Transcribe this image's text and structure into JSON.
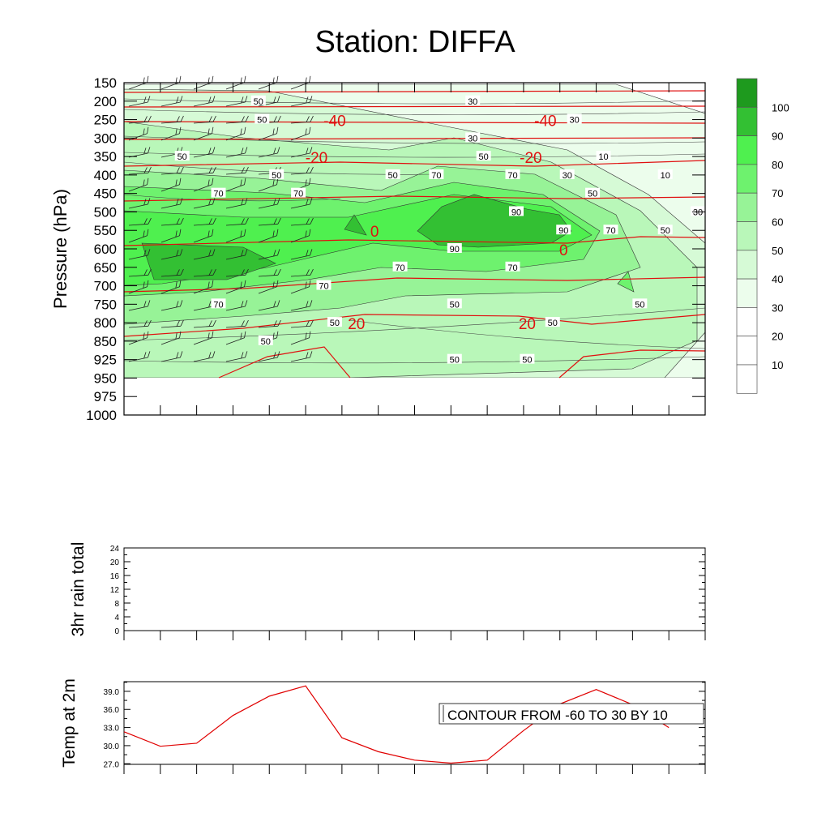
{
  "title": "Station: DIFFA",
  "colorbar": {
    "labels": [
      "100",
      "90",
      "80",
      "70",
      "60",
      "50",
      "40",
      "30",
      "20",
      "10"
    ],
    "colors": [
      "#1e9a1e",
      "#33c033",
      "#4ff04f",
      "#6ef26e",
      "#97f397",
      "#b9f7b9",
      "#d6fad6",
      "#ecfdec",
      "#ffffff",
      "#ffffff",
      "#ffffff"
    ]
  },
  "chart_data": [
    {
      "type": "heatmap",
      "name": "rh-wind-temperature-cross-section",
      "ylabel": "Pressure (hPa)",
      "y_ticks": [
        "150",
        "200",
        "250",
        "300",
        "350",
        "400",
        "450",
        "500",
        "550",
        "600",
        "650",
        "700",
        "750",
        "800",
        "850",
        "925",
        "950",
        "975",
        "1000"
      ],
      "x_ticks": 16,
      "shaded_field": "relative humidity (%)",
      "rh_levels": [
        10,
        20,
        30,
        40,
        50,
        60,
        70,
        80,
        90,
        100
      ],
      "rh_contour_labels": [
        {
          "text": "50",
          "x": 3.7,
          "p": "200"
        },
        {
          "text": "30",
          "x": 9.6,
          "p": "200"
        },
        {
          "text": "50",
          "x": 3.8,
          "p": "250"
        },
        {
          "text": "30",
          "x": 9.6,
          "p": "300"
        },
        {
          "text": "30",
          "x": 12.4,
          "p": "250"
        },
        {
          "text": "50",
          "x": 1.6,
          "p": "350"
        },
        {
          "text": "50",
          "x": 4.2,
          "p": "400"
        },
        {
          "text": "50",
          "x": 7.4,
          "p": "400"
        },
        {
          "text": "50",
          "x": 9.9,
          "p": "350"
        },
        {
          "text": "30",
          "x": 12.2,
          "p": "400"
        },
        {
          "text": "10",
          "x": 13.2,
          "p": "350"
        },
        {
          "text": "10",
          "x": 14.9,
          "p": "400"
        },
        {
          "text": "70",
          "x": 8.6,
          "p": "400"
        },
        {
          "text": "70",
          "x": 10.7,
          "p": "400"
        },
        {
          "text": "50",
          "x": 12.9,
          "p": "450"
        },
        {
          "text": "30",
          "x": 15.8,
          "p": "500"
        },
        {
          "text": "70",
          "x": 2.6,
          "p": "450"
        },
        {
          "text": "70",
          "x": 4.8,
          "p": "450"
        },
        {
          "text": "90",
          "x": 10.8,
          "p": "500"
        },
        {
          "text": "90",
          "x": 12.1,
          "p": "550"
        },
        {
          "text": "70",
          "x": 13.4,
          "p": "550"
        },
        {
          "text": "50",
          "x": 14.9,
          "p": "550"
        },
        {
          "text": "90",
          "x": 9.1,
          "p": "600"
        },
        {
          "text": "70",
          "x": 7.6,
          "p": "650"
        },
        {
          "text": "70",
          "x": 10.7,
          "p": "650"
        },
        {
          "text": "70",
          "x": 5.5,
          "p": "700"
        },
        {
          "text": "70",
          "x": 2.6,
          "p": "750"
        },
        {
          "text": "50",
          "x": 9.1,
          "p": "750"
        },
        {
          "text": "50",
          "x": 14.2,
          "p": "750"
        },
        {
          "text": "50",
          "x": 5.8,
          "p": "800"
        },
        {
          "text": "50",
          "x": 11.8,
          "p": "800"
        },
        {
          "text": "50",
          "x": 3.9,
          "p": "850"
        },
        {
          "text": "50",
          "x": 9.1,
          "p": "925"
        },
        {
          "text": "50",
          "x": 11.1,
          "p": "925"
        }
      ],
      "temp_contour_labels": [
        {
          "text": "-40",
          "x": 5.8,
          "p": "250"
        },
        {
          "text": "-40",
          "x": 11.6,
          "p": "250"
        },
        {
          "text": "-20",
          "x": 5.3,
          "p": "350"
        },
        {
          "text": "-20",
          "x": 11.2,
          "p": "350"
        },
        {
          "text": "0",
          "x": 6.9,
          "p": "550"
        },
        {
          "text": "0",
          "x": 12.1,
          "p": "600"
        },
        {
          "text": "20",
          "x": 6.4,
          "p": "800"
        },
        {
          "text": "20",
          "x": 11.1,
          "p": "800"
        }
      ]
    },
    {
      "type": "line",
      "name": "3hr-rain-total",
      "ylabel": "3hr rain total",
      "ylim": [
        0,
        24
      ],
      "y_ticks": [
        "0",
        "4",
        "8",
        "12",
        "16",
        "20",
        "24"
      ],
      "x": [
        0,
        1,
        2,
        3,
        4,
        5,
        6,
        7,
        8,
        9,
        10,
        11,
        12,
        13,
        14,
        15
      ],
      "values": [
        0,
        0,
        0,
        0,
        0,
        0,
        0,
        0,
        0,
        0,
        0,
        0,
        0,
        0,
        0,
        0
      ]
    },
    {
      "type": "line",
      "name": "temp-at-2m",
      "ylabel": "Temp at 2m",
      "ylim": [
        26.9,
        40.6
      ],
      "y_ticks": [
        "27.0",
        "30.0",
        "33.0",
        "36.0",
        "39.0"
      ],
      "x": [
        0,
        1,
        2,
        3,
        4,
        5,
        6,
        7,
        8,
        9,
        10,
        11,
        12,
        13,
        14,
        15
      ],
      "values": [
        32.3,
        29.9,
        30.4,
        35.0,
        38.2,
        39.9,
        31.3,
        29.0,
        27.6,
        27.1,
        27.6,
        32.5,
        36.9,
        39.3,
        36.8,
        33.0
      ],
      "annotation": "CONTOUR FROM -60 TO 30 BY 10"
    }
  ]
}
